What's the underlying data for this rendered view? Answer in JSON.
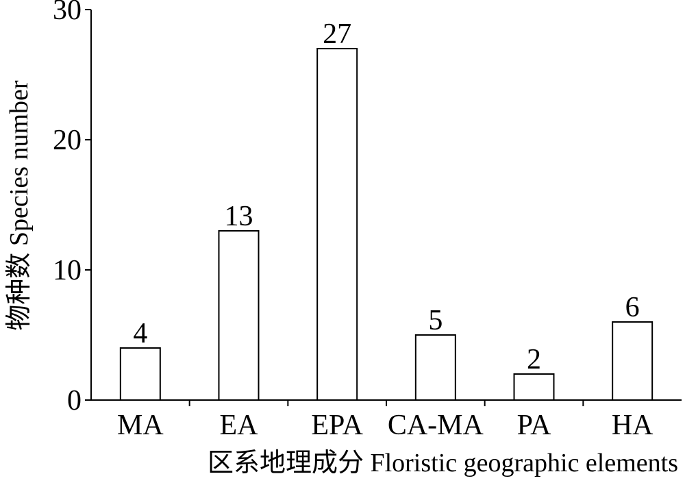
{
  "chart_data": {
    "type": "bar",
    "x_label": "区系地理成分 Floristic geographic elements",
    "y_label": "物种数 Species number",
    "categories": [
      "MA",
      "EA",
      "EPA",
      "CA-MA",
      "PA",
      "HA"
    ],
    "values": [
      4,
      13,
      27,
      5,
      2,
      6
    ],
    "color": "#ffffff",
    "edge_color": "#000000",
    "ylim": [
      0,
      30
    ],
    "yticks": [
      0,
      10,
      20,
      30
    ]
  }
}
